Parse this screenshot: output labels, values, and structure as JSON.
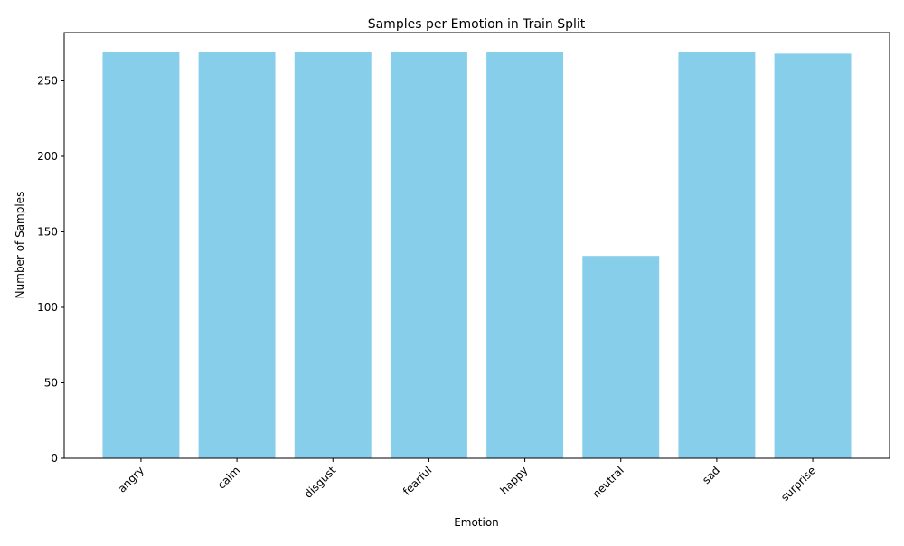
{
  "chart_data": {
    "type": "bar",
    "title": "Samples per Emotion in Train Split",
    "xlabel": "Emotion",
    "ylabel": "Number of Samples",
    "categories": [
      "angry",
      "calm",
      "disgust",
      "fearful",
      "happy",
      "neutral",
      "sad",
      "surprise"
    ],
    "values": [
      269,
      269,
      269,
      269,
      269,
      134,
      269,
      268
    ],
    "ylim": [
      0,
      282
    ],
    "yticks": [
      0,
      50,
      100,
      150,
      200,
      250
    ],
    "grid": false,
    "legend": "none",
    "bar_color": "#87ceeb",
    "xtick_rotation": 45
  }
}
